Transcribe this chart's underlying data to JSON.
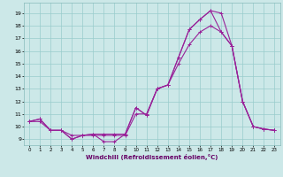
{
  "xlabel": "Windchill (Refroidissement éolien,°C)",
  "bg_color": "#cce8e8",
  "grid_color": "#99cccc",
  "line_color": "#992299",
  "marker": "+",
  "xlim": [
    -0.5,
    23.5
  ],
  "ylim": [
    8.5,
    19.8
  ],
  "xticks": [
    0,
    1,
    2,
    3,
    4,
    5,
    6,
    7,
    8,
    9,
    10,
    11,
    12,
    13,
    14,
    15,
    16,
    17,
    18,
    19,
    20,
    21,
    22,
    23
  ],
  "yticks": [
    9,
    10,
    11,
    12,
    13,
    14,
    15,
    16,
    17,
    18,
    19
  ],
  "line1_x": [
    0,
    1,
    2,
    3,
    4,
    5,
    6,
    7,
    8,
    9,
    10,
    11,
    12,
    13,
    14,
    15,
    16,
    17,
    18,
    19,
    20,
    21,
    22,
    23
  ],
  "line1_y": [
    10.4,
    10.6,
    9.7,
    9.7,
    9.0,
    9.3,
    9.4,
    8.8,
    8.8,
    9.4,
    11.5,
    10.9,
    13.0,
    13.3,
    15.5,
    17.7,
    18.5,
    19.2,
    19.0,
    16.4,
    12.0,
    10.0,
    9.8,
    9.7
  ],
  "line2_x": [
    0,
    1,
    2,
    3,
    4,
    5,
    6,
    7,
    8,
    9,
    10,
    11,
    12,
    13,
    14,
    15,
    16,
    17,
    18,
    19,
    20,
    21,
    22,
    23
  ],
  "line2_y": [
    10.4,
    10.6,
    9.7,
    9.7,
    9.0,
    9.3,
    9.4,
    9.4,
    9.4,
    9.4,
    11.5,
    10.9,
    13.0,
    13.3,
    15.5,
    17.7,
    18.5,
    19.2,
    17.5,
    16.4,
    12.0,
    10.0,
    9.8,
    9.7
  ],
  "line3_x": [
    0,
    1,
    2,
    3,
    4,
    5,
    6,
    7,
    8,
    9,
    10,
    11,
    12,
    13,
    14,
    15,
    16,
    17,
    18,
    19,
    20,
    21,
    22,
    23
  ],
  "line3_y": [
    10.4,
    10.4,
    9.7,
    9.7,
    9.3,
    9.3,
    9.3,
    9.3,
    9.3,
    9.3,
    11.0,
    11.0,
    13.0,
    13.3,
    15.0,
    16.5,
    17.5,
    18.0,
    17.5,
    16.4,
    12.0,
    10.0,
    9.8,
    9.7
  ]
}
